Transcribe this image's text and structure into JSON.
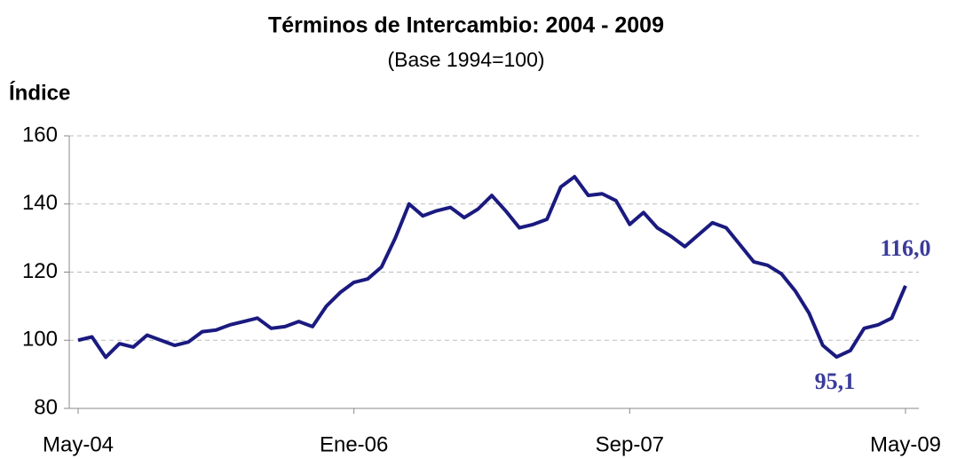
{
  "chart_data": {
    "type": "line",
    "title": "Términos de Intercambio: 2004 - 2009",
    "subtitle": "(Base 1994=100)",
    "y_label": "Índice",
    "categories": [
      "May-04",
      null,
      null,
      null,
      null,
      null,
      null,
      null,
      null,
      null,
      null,
      null,
      null,
      null,
      null,
      null,
      null,
      null,
      null,
      null,
      "Ene-06",
      null,
      null,
      null,
      null,
      null,
      null,
      null,
      null,
      null,
      null,
      null,
      null,
      null,
      null,
      null,
      null,
      null,
      null,
      null,
      "Sep-07",
      null,
      null,
      null,
      null,
      null,
      null,
      null,
      null,
      null,
      null,
      null,
      null,
      null,
      null,
      null,
      null,
      null,
      null,
      null,
      "May-09"
    ],
    "series": [
      {
        "name": "Términos de Intercambio",
        "color": "#1a1a80",
        "values": [
          100,
          101,
          95,
          99,
          98,
          101.5,
          100,
          98.5,
          99.5,
          102.5,
          103,
          104.5,
          105.5,
          106.5,
          103.5,
          104,
          105.5,
          104,
          110,
          114,
          117,
          118,
          121.5,
          130,
          140,
          136.5,
          138,
          139,
          136,
          138.5,
          142.5,
          138,
          133,
          134,
          135.5,
          145,
          148,
          142.5,
          143,
          141,
          134,
          137.5,
          133,
          130.5,
          127.5,
          131,
          134.5,
          133,
          128,
          123,
          122,
          119.5,
          114.5,
          108,
          98.5,
          95.1,
          97,
          103.5,
          104.5,
          106.5,
          116
        ],
        "value_labels": [
          null,
          null,
          null,
          null,
          null,
          null,
          null,
          null,
          null,
          null,
          null,
          null,
          null,
          null,
          null,
          null,
          null,
          null,
          null,
          null,
          null,
          null,
          null,
          null,
          null,
          null,
          null,
          null,
          null,
          null,
          null,
          null,
          null,
          null,
          null,
          null,
          null,
          null,
          null,
          null,
          null,
          null,
          null,
          null,
          null,
          null,
          null,
          null,
          null,
          null,
          null,
          null,
          null,
          null,
          null,
          "95,1",
          null,
          null,
          null,
          null,
          "116,0"
        ],
        "label_color": "#3b3b9c"
      }
    ],
    "ylim": [
      80,
      160
    ],
    "yticks": [
      80,
      100,
      120,
      140,
      160
    ],
    "grid": true
  }
}
